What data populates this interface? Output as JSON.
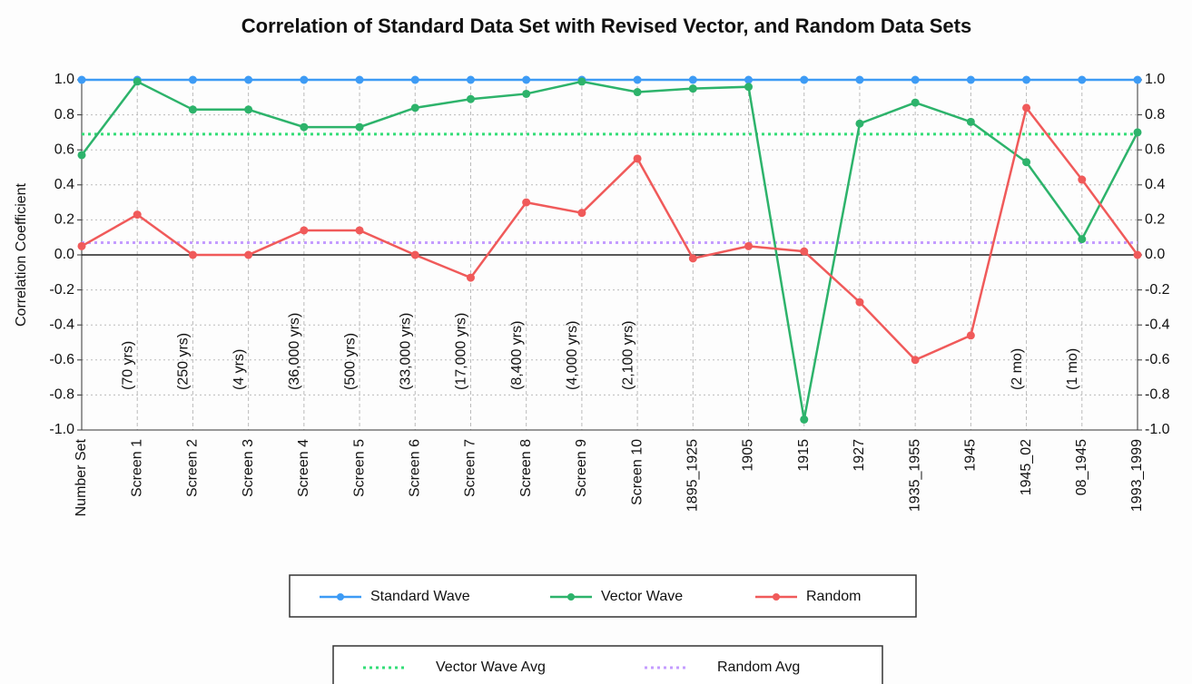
{
  "chart_data": {
    "type": "line",
    "title": "Correlation of Standard Data Set with Revised Vector, and Random Data Sets",
    "y_label": "Correlation Coefficient",
    "categories": [
      "Number Set",
      "Screen 1",
      "Screen 2",
      "Screen 3",
      "Screen 4",
      "Screen 5",
      "Screen 6",
      "Screen 7",
      "Screen 8",
      "Screen 9",
      "Screen 10",
      "1895_1925",
      "1905",
      "1915",
      "1927",
      "1935_1955",
      "1945",
      "1945_02",
      "08_1945",
      "1993_1999"
    ],
    "annotations": [
      null,
      "(70 yrs)",
      "(250 yrs)",
      "(4 yrs)",
      "(36,000 yrs)",
      "(500 yrs)",
      "(33,000 yrs)",
      "(17,000 yrs)",
      "(8,400 yrs)",
      "(4,000 yrs)",
      "(2,100 yrs)",
      null,
      null,
      null,
      null,
      null,
      null,
      "(2 mo)",
      "(1 mo)",
      null
    ],
    "series": [
      {
        "name": "Standard Wave",
        "color": "#3d9bf5",
        "values": [
          1.0,
          1.0,
          1.0,
          1.0,
          1.0,
          1.0,
          1.0,
          1.0,
          1.0,
          1.0,
          1.0,
          1.0,
          1.0,
          1.0,
          1.0,
          1.0,
          1.0,
          1.0,
          1.0,
          1.0
        ]
      },
      {
        "name": "Vector Wave",
        "color": "#2db36b",
        "values": [
          0.57,
          0.99,
          0.83,
          0.83,
          0.73,
          0.73,
          0.84,
          0.89,
          0.92,
          0.99,
          0.93,
          0.95,
          0.96,
          -0.94,
          0.75,
          0.87,
          0.76,
          0.53,
          0.09,
          0.7
        ]
      },
      {
        "name": "Random",
        "color": "#f05a5a",
        "values": [
          0.05,
          0.23,
          0.0,
          0.0,
          0.14,
          0.14,
          0.0,
          -0.13,
          0.3,
          0.24,
          0.55,
          -0.02,
          0.05,
          0.02,
          -0.27,
          -0.6,
          -0.46,
          0.84,
          0.43,
          0.0
        ]
      }
    ],
    "reference_lines": [
      {
        "name": "Vector Wave Avg",
        "color": "#33dd77",
        "value": 0.69
      },
      {
        "name": "Random Avg",
        "color": "#c49cff",
        "value": 0.07
      }
    ],
    "ylim": [
      -1.0,
      1.0
    ],
    "yticks": [
      {
        "value": -1,
        "label": "-1.0"
      },
      -0.8,
      -0.6,
      -0.4,
      -0.2,
      {
        "value": 0,
        "label": "0.0"
      },
      0.2,
      0.4,
      0.6,
      0.8,
      {
        "value": 1,
        "label": "1.0"
      }
    ],
    "grid": true
  }
}
